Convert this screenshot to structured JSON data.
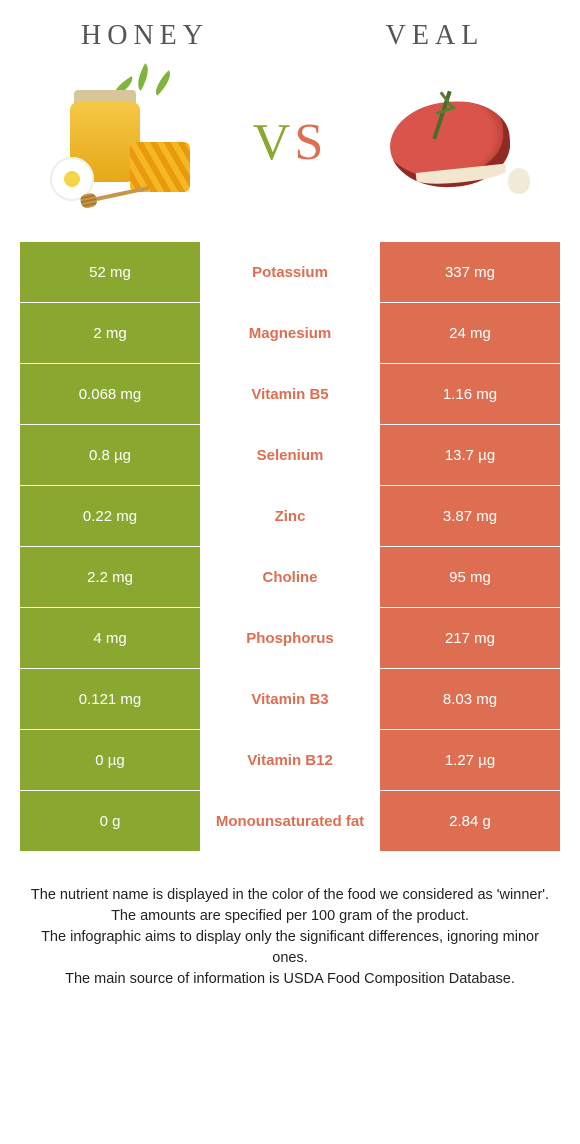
{
  "colors": {
    "honey": "#8aa82f",
    "veal": "#dd6e51",
    "white": "#ffffff",
    "text": "#222222"
  },
  "header": {
    "left": "HONEY",
    "right": "VEAL",
    "vs_v": "V",
    "vs_s": "S"
  },
  "rows": [
    {
      "left": "52 mg",
      "label": "Potassium",
      "right": "337 mg",
      "winner": "veal"
    },
    {
      "left": "2 mg",
      "label": "Magnesium",
      "right": "24 mg",
      "winner": "veal"
    },
    {
      "left": "0.068 mg",
      "label": "Vitamin B5",
      "right": "1.16 mg",
      "winner": "veal"
    },
    {
      "left": "0.8 µg",
      "label": "Selenium",
      "right": "13.7 µg",
      "winner": "veal"
    },
    {
      "left": "0.22 mg",
      "label": "Zinc",
      "right": "3.87 mg",
      "winner": "veal"
    },
    {
      "left": "2.2 mg",
      "label": "Choline",
      "right": "95 mg",
      "winner": "veal"
    },
    {
      "left": "4 mg",
      "label": "Phosphorus",
      "right": "217 mg",
      "winner": "veal"
    },
    {
      "left": "0.121 mg",
      "label": "Vitamin B3",
      "right": "8.03 mg",
      "winner": "veal"
    },
    {
      "left": "0 µg",
      "label": "Vitamin B12",
      "right": "1.27 µg",
      "winner": "veal"
    },
    {
      "left": "0 g",
      "label": "Monounsaturated fat",
      "right": "2.84 g",
      "winner": "veal"
    }
  ],
  "footer": {
    "line1": "The nutrient name is displayed in the color of the food we considered as 'winner'.",
    "line2": "The amounts are specified per 100 gram of the product.",
    "line3": "The infographic aims to display only the significant differences, ignoring minor ones.",
    "line4": "The main source of information is USDA Food Composition Database."
  }
}
